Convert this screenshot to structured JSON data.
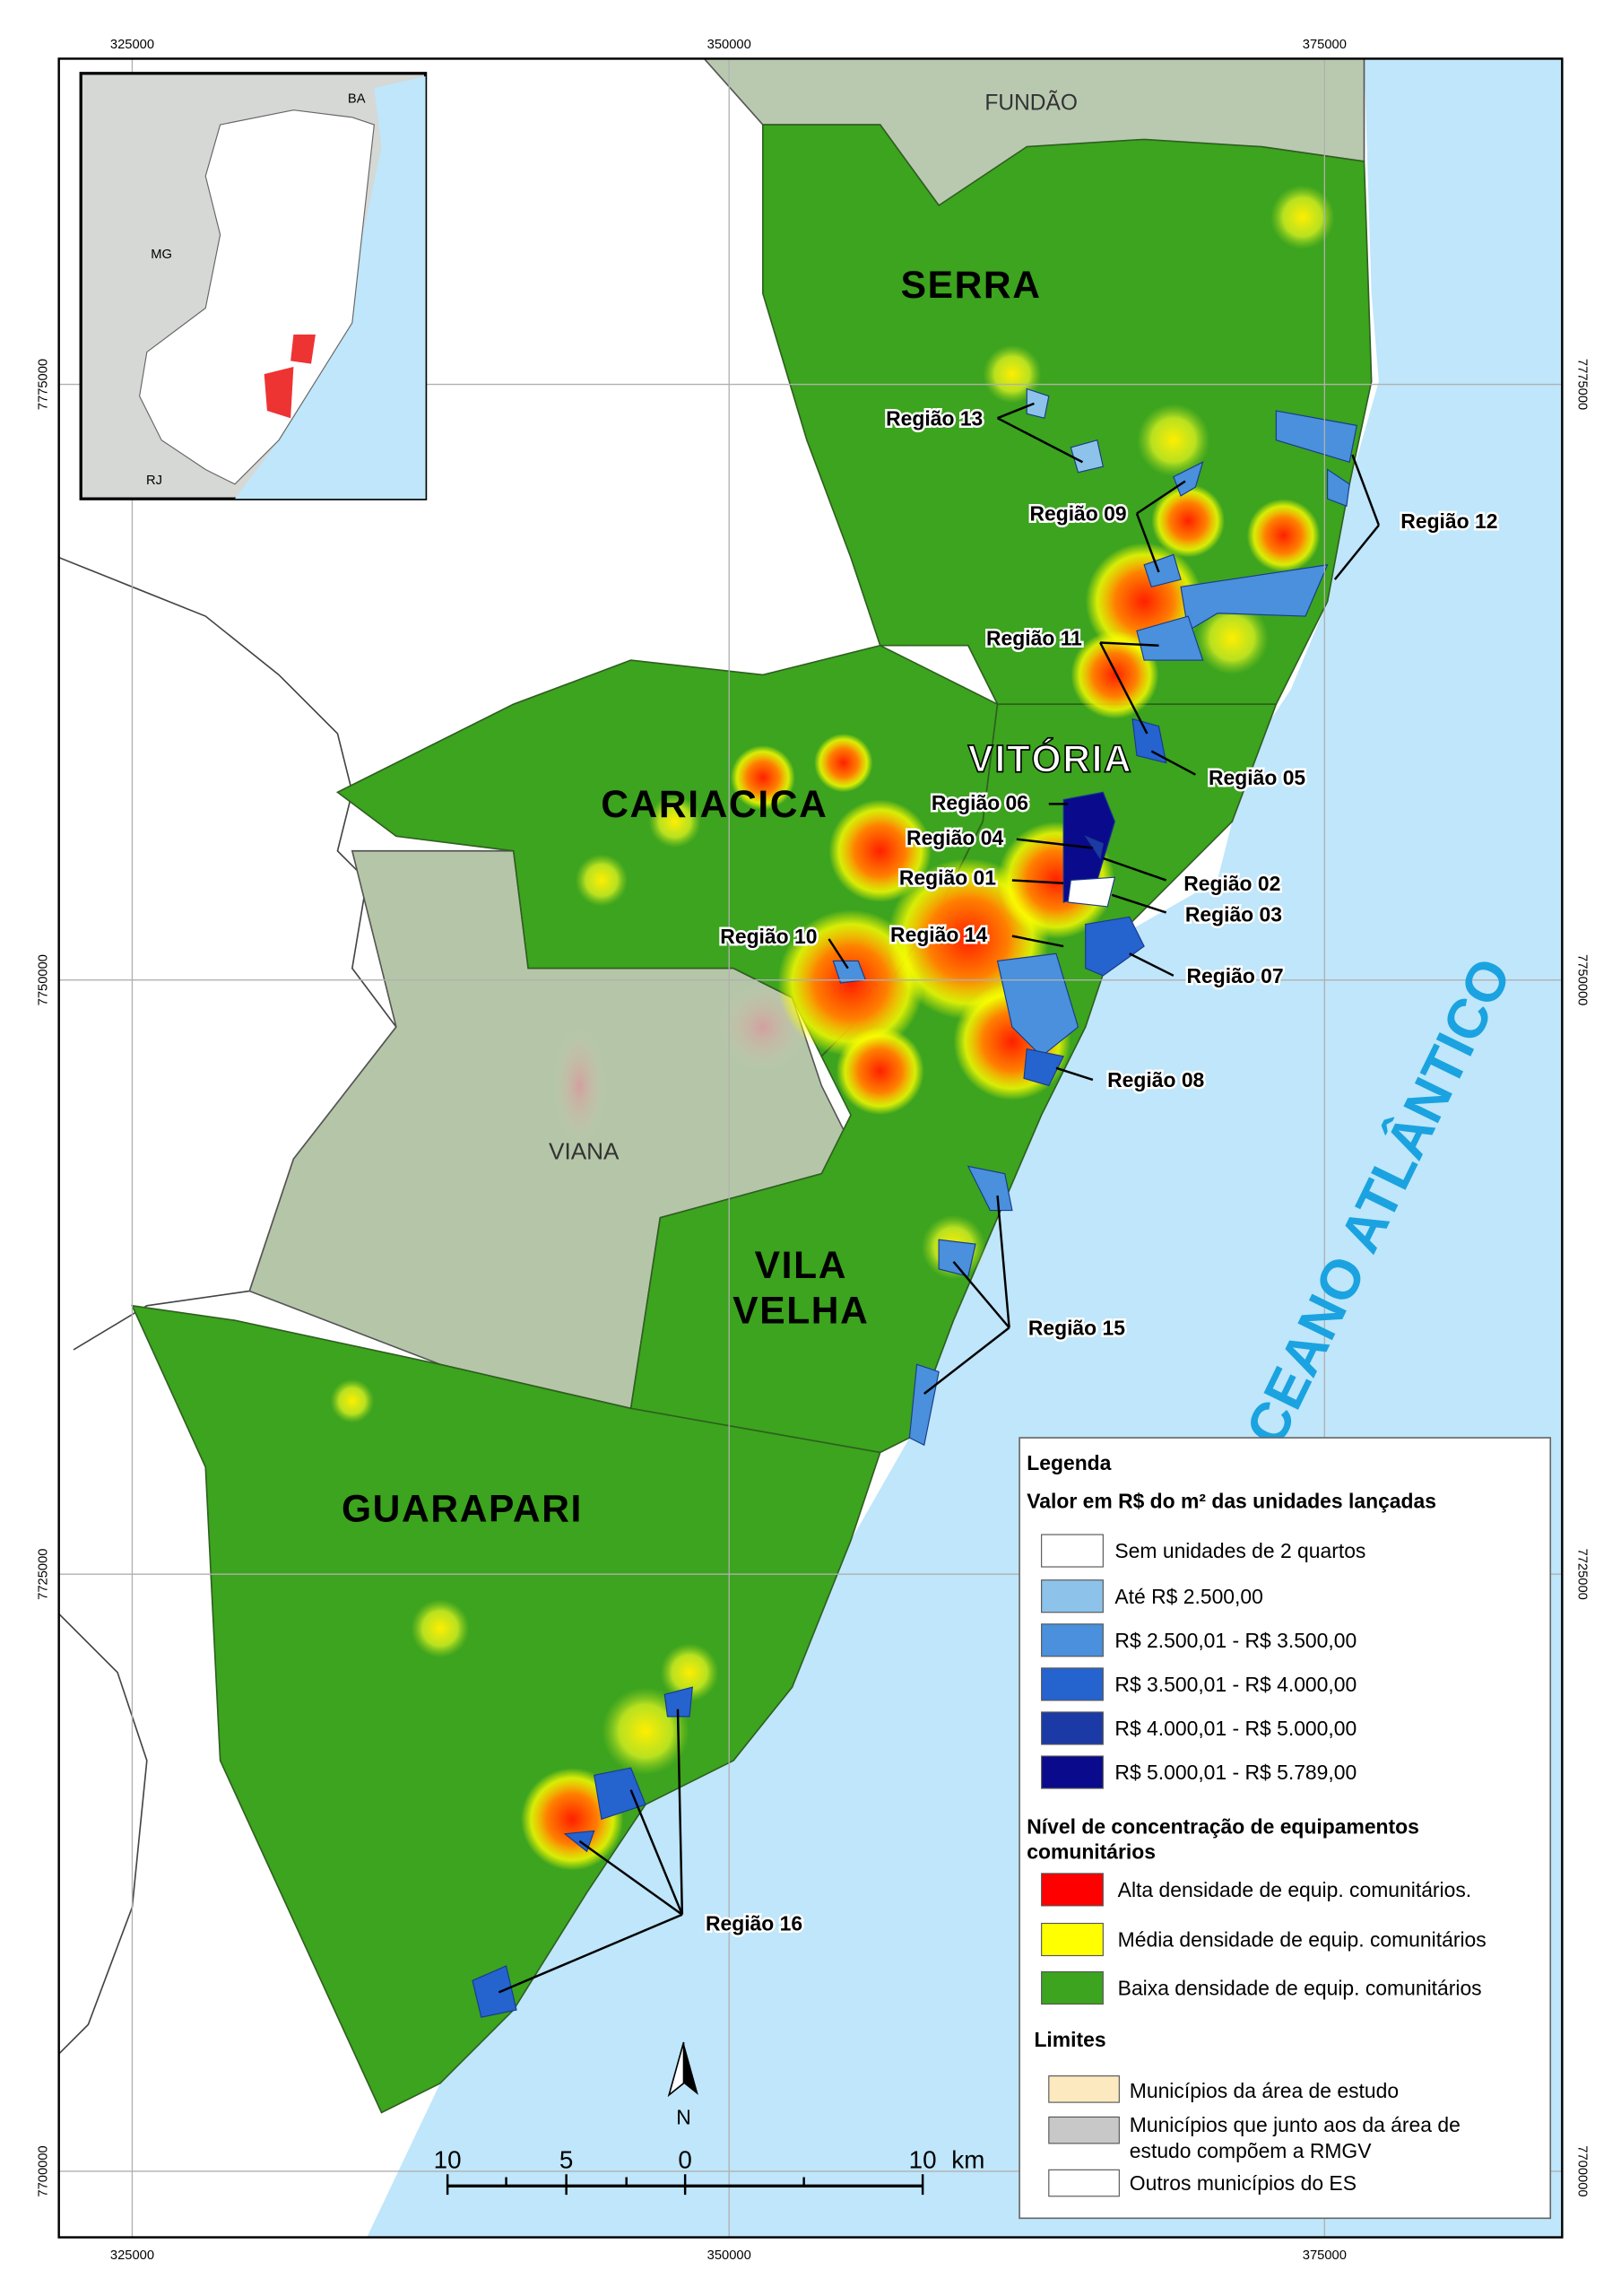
{
  "grid_labels": {
    "top": [
      "325000",
      "350000",
      "375000"
    ],
    "bottom": [
      "325000",
      "350000",
      "375000"
    ],
    "left": [
      "7775000",
      "7750000",
      "7725000",
      "7700000"
    ],
    "right": [
      "7775000",
      "7750000",
      "7725000",
      "7700000"
    ]
  },
  "inset": {
    "labels": [
      "BA",
      "MG",
      "RJ"
    ]
  },
  "municipalities": {
    "fundao": "FUNDÃO",
    "serra": "SERRA",
    "vitoria": "VITÓRIA",
    "cariacica": "CARIACICA",
    "viana": "VIANA",
    "vila_velha": [
      "VILA",
      "VELHA"
    ],
    "guarapari": "GUARAPARI"
  },
  "ocean": "OCEANO ATLÂNTICO",
  "regions": [
    "Região 01",
    "Região 02",
    "Região 03",
    "Região 04",
    "Região 05",
    "Região 06",
    "Região 07",
    "Região 08",
    "Região 09",
    "Região 10",
    "Região 11",
    "Região 12",
    "Região 13",
    "Região 14",
    "Região 15",
    "Região 16"
  ],
  "legend": {
    "title": "Legenda",
    "value_title": "Valor em R$ do m² das unidades lançadas",
    "value_items": [
      "Sem unidades de 2 quartos",
      "Até R$ 2.500,00",
      "R$ 2.500,01 - R$ 3.500,00",
      "R$ 3.500,01 - R$ 4.000,00",
      "R$ 4.000,01 - R$ 5.000,00",
      "R$ 5.000,01 - R$ 5.789,00"
    ],
    "density_title": [
      "Nível de concentração de equipamentos",
      "comunitários"
    ],
    "density_items": [
      "Alta densidade de equip. comunitários.",
      "Média densidade de equip. comunitários",
      "Baixa densidade de equip. comunitários"
    ],
    "limits_title": "Limites",
    "limits_items": [
      [
        "Municípios da área de estudo"
      ],
      [
        "Municípios que junto aos da área de",
        "estudo compõem a RMGV"
      ],
      [
        "Outros municípios do ES"
      ]
    ]
  },
  "scale_bar": {
    "labels": [
      "10",
      "5",
      "0",
      "10"
    ],
    "unit": "km"
  },
  "north": "N"
}
